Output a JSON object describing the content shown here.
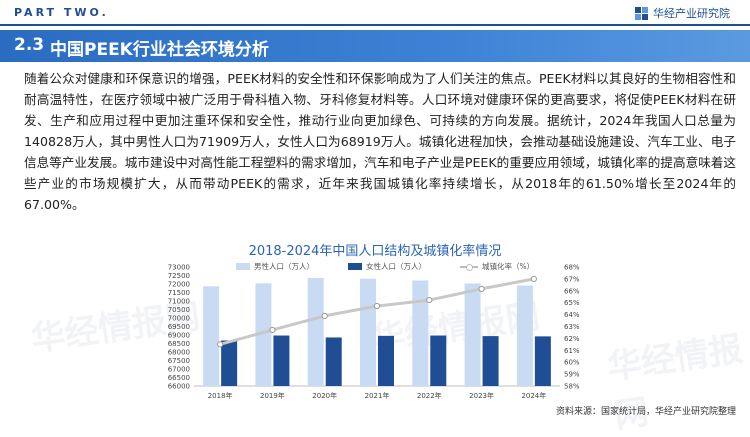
{
  "header": {
    "part_label": "PART TWO.",
    "brand": "华经产业研究院"
  },
  "section": {
    "number": "2.3",
    "title": "中国PEEK行业社会环境分析"
  },
  "body_text": "随着公众对健康和环保意识的增强，PEEK材料的安全性和环保影响成为了人们关注的焦点。PEEK材料以其良好的生物相容性和耐高温特性，在医疗领域中被广泛用于骨科植入物、牙科修复材料等。人口环境对健康环保的更高要求，将促使PEEK材料在研发、生产和应用过程中更加注重环保和安全性，推动行业向更加绿色、可持续的方向发展。据统计，2024年我国人口总量为140828万人，其中男性人口为71909万人，女性人口为68919万人。城镇化进程加快，会推动基础设施建设、汽车工业、电子信息等产业发展。城市建设中对高性能工程塑料的需求增加，汽车和电子产业是PEEK的重要应用领域，城镇化率的提高意味着这些产业的市场规模扩大，从而带动PEEK的需求，近年来我国城镇化率持续增长，从2018年的61.50%增长至2024年的67.00%。",
  "watermark": "华经情报网",
  "source": "资料来源：国家统计局，华经产业研究院整理",
  "colors": {
    "male": "#c9dbf2",
    "female": "#1f4e94",
    "line": "#c8c8c8",
    "accent": "#2a6cc2"
  },
  "chart_data": {
    "type": "bar",
    "title": "2018-2024年中国人口结构及城镇化率情况",
    "categories": [
      "2018年",
      "2019年",
      "2020年",
      "2021年",
      "2022年",
      "2023年",
      "2024年"
    ],
    "series": [
      {
        "name": "男性人口（万人）",
        "type": "bar",
        "axis": "left",
        "values": [
          71864,
          72039,
          72357,
          72311,
          72206,
          72032,
          71909
        ]
      },
      {
        "name": "女性人口（万人）",
        "type": "bar",
        "axis": "left",
        "values": [
          68677,
          68969,
          68855,
          68949,
          68969,
          68935,
          68919
        ]
      },
      {
        "name": "城镇化率（%）",
        "type": "line",
        "axis": "right",
        "values": [
          61.5,
          62.71,
          63.89,
          64.72,
          65.22,
          66.16,
          67.0
        ]
      }
    ],
    "y_left": {
      "min": 66000,
      "max": 73000,
      "step": 500,
      "ticks": [
        "66000",
        "66500",
        "67000",
        "67500",
        "68000",
        "68500",
        "69000",
        "69500",
        "70000",
        "70500",
        "71000",
        "71500",
        "72000",
        "72500",
        "73000"
      ]
    },
    "y_right": {
      "min": 58,
      "max": 68,
      "step": 1,
      "ticks": [
        "58%",
        "59%",
        "60%",
        "61%",
        "62%",
        "63%",
        "64%",
        "65%",
        "66%",
        "67%",
        "68%"
      ]
    },
    "legend_position": "top-center"
  }
}
